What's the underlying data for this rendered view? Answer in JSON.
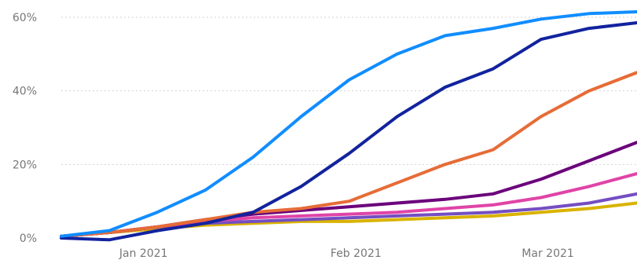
{
  "chart_data": {
    "type": "line",
    "title": "",
    "xlabel": "",
    "ylabel": "",
    "x_start": "2020-12-20",
    "x_end": "2021-03-14",
    "x": [
      "2020-12-20",
      "2020-12-27",
      "2021-01-03",
      "2021-01-10",
      "2021-01-17",
      "2021-01-24",
      "2021-01-31",
      "2021-02-07",
      "2021-02-14",
      "2021-02-21",
      "2021-02-28",
      "2021-03-07",
      "2021-03-14"
    ],
    "xticks": [
      {
        "date": "2021-01-01",
        "label": "Jan 2021"
      },
      {
        "date": "2021-02-01",
        "label": "Feb 2021"
      },
      {
        "date": "2021-03-01",
        "label": "Mar 2021"
      }
    ],
    "ylim": [
      0,
      60
    ],
    "yticks": [
      {
        "value": 0,
        "label": "0%"
      },
      {
        "value": 20,
        "label": "20%"
      },
      {
        "value": 40,
        "label": "40%"
      },
      {
        "value": 60,
        "label": "60%"
      }
    ],
    "grid": true,
    "series": [
      {
        "color": "#118DFF",
        "values": [
          0.5,
          2,
          7,
          13,
          22,
          33,
          43,
          50,
          55,
          57,
          59.5,
          61,
          61.5
        ]
      },
      {
        "color": "#12239E",
        "values": [
          0,
          -0.5,
          2,
          4,
          7,
          14,
          23,
          33,
          41,
          46,
          54,
          57,
          58.5
        ]
      },
      {
        "color": "#E66C37",
        "values": [
          0.5,
          1.5,
          3,
          5,
          7,
          8,
          10,
          15,
          20,
          24,
          33,
          40,
          45
        ]
      },
      {
        "color": "#6B007B",
        "values": [
          0.5,
          1.5,
          3,
          5,
          6.5,
          7.5,
          8.5,
          9.5,
          10.5,
          12,
          16,
          21,
          26
        ]
      },
      {
        "color": "#E044A7",
        "values": [
          0.5,
          1.5,
          3,
          4.5,
          5.5,
          6,
          6.5,
          7,
          8,
          9,
          11,
          14,
          17.5
        ]
      },
      {
        "color": "#744EC2",
        "values": [
          0.5,
          1.5,
          3,
          4,
          4.5,
          5,
          5.5,
          6,
          6.5,
          7,
          8,
          9.5,
          12
        ]
      },
      {
        "color": "#D9B300",
        "values": [
          0.5,
          1.5,
          2.5,
          3.5,
          4,
          4.5,
          4.5,
          5,
          5.5,
          6,
          7,
          8,
          9.5
        ]
      }
    ]
  }
}
